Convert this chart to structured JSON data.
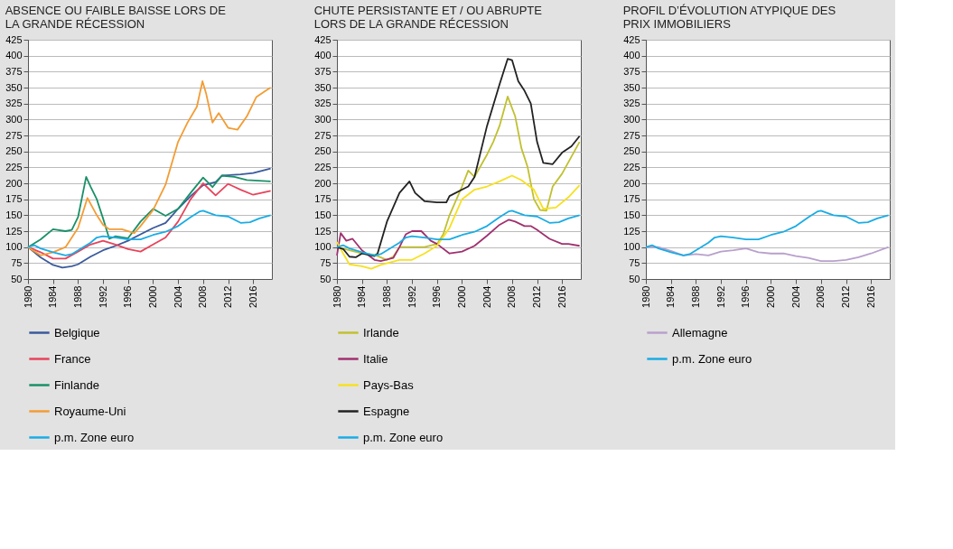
{
  "chart_data": [
    {
      "type": "line",
      "title": "ABSENCE OU FAIBLE BAISSE LORS DE LA GRANDE RÉCESSION",
      "xlim": [
        1980,
        2019
      ],
      "xticks": [
        1980,
        1984,
        1988,
        1992,
        1996,
        2000,
        2004,
        2008,
        2012,
        2016
      ],
      "ylim": [
        50,
        425
      ],
      "yticks": [
        50,
        75,
        100,
        125,
        150,
        175,
        200,
        225,
        250,
        275,
        300,
        325,
        350,
        375,
        400,
        425
      ],
      "grid": "y",
      "legend": "bottom",
      "line_style": "solid",
      "marker": "none",
      "series": [
        {
          "name": "Belgique",
          "color": "#3a5a9c",
          "x": [
            1980,
            1982,
            1984,
            1985.5,
            1987,
            1988,
            1990,
            1992,
            1994,
            1996,
            1998,
            2000,
            2002,
            2004,
            2006,
            2008,
            2010,
            2011,
            2014,
            2016,
            2018.8
          ],
          "values": [
            100,
            84,
            72,
            68,
            70,
            73,
            85,
            95,
            102,
            110,
            120,
            130,
            138,
            160,
            180,
            197,
            202,
            212,
            214,
            216,
            223
          ]
        },
        {
          "name": "France",
          "color": "#e8435a",
          "x": [
            1980,
            1982,
            1984,
            1986,
            1988,
            1990,
            1992,
            1994,
            1996,
            1998,
            2000,
            2002,
            2004,
            2006,
            2008,
            2010,
            2012,
            2014,
            2016,
            2018.8
          ],
          "values": [
            100,
            92,
            82,
            82,
            93,
            104,
            110,
            104,
            97,
            93,
            104,
            115,
            140,
            175,
            200,
            181,
            199,
            190,
            182,
            188
          ]
        },
        {
          "name": "Finlande",
          "color": "#1a9068",
          "x": [
            1980,
            1982,
            1984,
            1986,
            1987,
            1988,
            1989.3,
            1990,
            1991,
            1992,
            1993,
            1994,
            1996,
            1998,
            2000,
            2002,
            2004,
            2006,
            2008,
            2009.5,
            2011,
            2013,
            2015,
            2018.8
          ],
          "values": [
            100,
            112,
            128,
            125,
            127,
            147,
            210,
            195,
            175,
            145,
            113,
            117,
            114,
            140,
            160,
            149,
            160,
            185,
            209,
            194,
            212,
            210,
            205,
            203
          ]
        },
        {
          "name": "Royaume-Uni",
          "color": "#f39c34",
          "x": [
            1980,
            1982,
            1984,
            1986,
            1988,
            1989.5,
            1991,
            1992,
            1993,
            1995,
            1997,
            1998,
            2000,
            2002,
            2004,
            2005.5,
            2007,
            2007.9,
            2008.5,
            2009.5,
            2010.5,
            2012,
            2013.5,
            2015,
            2016.5,
            2018,
            2018.8
          ],
          "values": [
            100,
            87,
            92,
            100,
            130,
            177,
            150,
            135,
            128,
            128,
            122,
            133,
            158,
            198,
            265,
            295,
            320,
            360,
            340,
            295,
            310,
            287,
            284,
            305,
            335,
            345,
            350
          ]
        },
        {
          "name": "p.m. Zone euro",
          "color": "#1aace4",
          "x": [
            1980,
            1981,
            1982,
            1984,
            1986,
            1987,
            1988,
            1990,
            1991,
            1992,
            1994,
            1996,
            1998,
            2000,
            2002,
            2004,
            2006,
            2007.5,
            2008,
            2010,
            2012,
            2014,
            2015.5,
            2017,
            2018.8
          ],
          "values": [
            100,
            103,
            98,
            92,
            87,
            89,
            95,
            107,
            115,
            117,
            115,
            112,
            112,
            119,
            124,
            133,
            147,
            156,
            157,
            150,
            148,
            138,
            139,
            145,
            150
          ]
        }
      ]
    },
    {
      "type": "line",
      "title": "CHUTE PERSISTANTE ET / OU ABRUPTE LORS DE LA GRANDE RÉCESSION",
      "xlim": [
        1980,
        2019
      ],
      "xticks": [
        1980,
        1984,
        1988,
        1992,
        1996,
        2000,
        2004,
        2008,
        2012,
        2016
      ],
      "ylim": [
        50,
        425
      ],
      "yticks": [
        50,
        75,
        100,
        125,
        150,
        175,
        200,
        225,
        250,
        275,
        300,
        325,
        350,
        375,
        400,
        425
      ],
      "grid": "y",
      "legend": "bottom",
      "line_style": "solid",
      "marker": "none",
      "series": [
        {
          "name": "Irlande",
          "color": "#c0c030",
          "x": [
            1980,
            1982,
            1984,
            1986,
            1988,
            1989,
            1990,
            1992,
            1994,
            1996,
            1997,
            1998,
            2000,
            2001,
            2002,
            2004,
            2005,
            2006,
            2007.3,
            2008.5,
            2009.5,
            2010.5,
            2011.5,
            2012.5,
            2013.5,
            2014.5,
            2016,
            2018.8
          ],
          "values": [
            100,
            95,
            90,
            88,
            80,
            85,
            100,
            100,
            100,
            105,
            120,
            150,
            195,
            220,
            210,
            245,
            265,
            290,
            336,
            305,
            255,
            225,
            175,
            158,
            157,
            195,
            215,
            265
          ]
        },
        {
          "name": "Italie",
          "color": "#a0306e",
          "x": [
            1980,
            1980.6,
            1981.5,
            1982.5,
            1984,
            1986,
            1987,
            1989,
            1990,
            1991,
            1992,
            1993.5,
            1995,
            1996,
            1998,
            2000,
            2002,
            2004,
            2006,
            2007.5,
            2008.5,
            2010,
            2011,
            2012,
            2014,
            2016,
            2017,
            2018.8
          ],
          "values": [
            87,
            122,
            110,
            113,
            95,
            80,
            78,
            83,
            100,
            120,
            125,
            125,
            110,
            105,
            90,
            93,
            102,
            118,
            135,
            143,
            140,
            133,
            133,
            127,
            113,
            105,
            105,
            102
          ]
        },
        {
          "name": "Pays-Bas",
          "color": "#f7e020",
          "x": [
            1980,
            1981,
            1982,
            1984,
            1985.5,
            1987,
            1990,
            1992,
            1994,
            1996,
            1998,
            2000,
            2002,
            2004,
            2006,
            2008,
            2009.5,
            2011.5,
            2013,
            2015,
            2017,
            2018.8
          ],
          "values": [
            108,
            90,
            73,
            70,
            66,
            72,
            80,
            80,
            90,
            102,
            130,
            175,
            190,
            195,
            203,
            212,
            205,
            190,
            160,
            162,
            178,
            197
          ]
        },
        {
          "name": "Espagne",
          "color": "#222222",
          "x": [
            1980,
            1981,
            1982,
            1983,
            1984,
            1986,
            1986.5,
            1988,
            1990,
            1991.6,
            1992.5,
            1994,
            1996,
            1997.5,
            1998,
            2000,
            2001,
            2002,
            2004,
            2006,
            2007.3,
            2008,
            2009,
            2010,
            2011,
            2012,
            2013,
            2014.5,
            2016,
            2017.5,
            2018.8
          ],
          "values": [
            100,
            97,
            85,
            84,
            90,
            86,
            90,
            140,
            185,
            203,
            185,
            172,
            170,
            170,
            180,
            190,
            195,
            210,
            290,
            355,
            395,
            393,
            360,
            345,
            325,
            265,
            232,
            230,
            248,
            258,
            274
          ]
        },
        {
          "name": "p.m. Zone euro",
          "color": "#1aace4",
          "x": [
            1980,
            1981,
            1982,
            1984,
            1986,
            1987,
            1988,
            1990,
            1991,
            1992,
            1994,
            1996,
            1998,
            2000,
            2002,
            2004,
            2006,
            2007.5,
            2008,
            2010,
            2012,
            2014,
            2015.5,
            2017,
            2018.8
          ],
          "values": [
            100,
            103,
            98,
            92,
            87,
            89,
            95,
            107,
            115,
            117,
            115,
            112,
            112,
            119,
            124,
            133,
            147,
            156,
            157,
            150,
            148,
            138,
            139,
            145,
            150
          ]
        }
      ]
    },
    {
      "type": "line",
      "title": "PROFIL D’ÉVOLUTION ATYPIQUE DES PRIX IMMOBILIERS",
      "xlim": [
        1980,
        2019
      ],
      "xticks": [
        1980,
        1984,
        1988,
        1992,
        1996,
        2000,
        2004,
        2008,
        2012,
        2016
      ],
      "ylim": [
        50,
        425
      ],
      "yticks": [
        50,
        75,
        100,
        125,
        150,
        175,
        200,
        225,
        250,
        275,
        300,
        325,
        350,
        375,
        400,
        425
      ],
      "grid": "y",
      "legend": "bottom",
      "line_style": "solid",
      "marker": "none",
      "series": [
        {
          "name": "Allemagne",
          "color": "#b8a0cc",
          "x": [
            1980,
            1982,
            1984,
            1986,
            1988,
            1990,
            1992,
            1994,
            1996,
            1998,
            2000,
            2002,
            2004,
            2006,
            2008,
            2010,
            2012,
            2014,
            2016,
            2018.8
          ],
          "values": [
            100,
            100,
            94,
            87,
            89,
            87,
            93,
            95,
            98,
            92,
            90,
            90,
            86,
            83,
            78,
            78,
            80,
            84,
            90,
            100
          ]
        },
        {
          "name": "p.m. Zone euro",
          "color": "#1aace4",
          "x": [
            1980,
            1981,
            1982,
            1984,
            1986,
            1987,
            1988,
            1990,
            1991,
            1992,
            1994,
            1996,
            1998,
            2000,
            2002,
            2004,
            2006,
            2007.5,
            2008,
            2010,
            2012,
            2014,
            2015.5,
            2017,
            2018.8
          ],
          "values": [
            100,
            103,
            98,
            92,
            87,
            89,
            95,
            107,
            115,
            117,
            115,
            112,
            112,
            119,
            124,
            133,
            147,
            156,
            157,
            150,
            148,
            138,
            139,
            145,
            150
          ]
        }
      ]
    }
  ]
}
